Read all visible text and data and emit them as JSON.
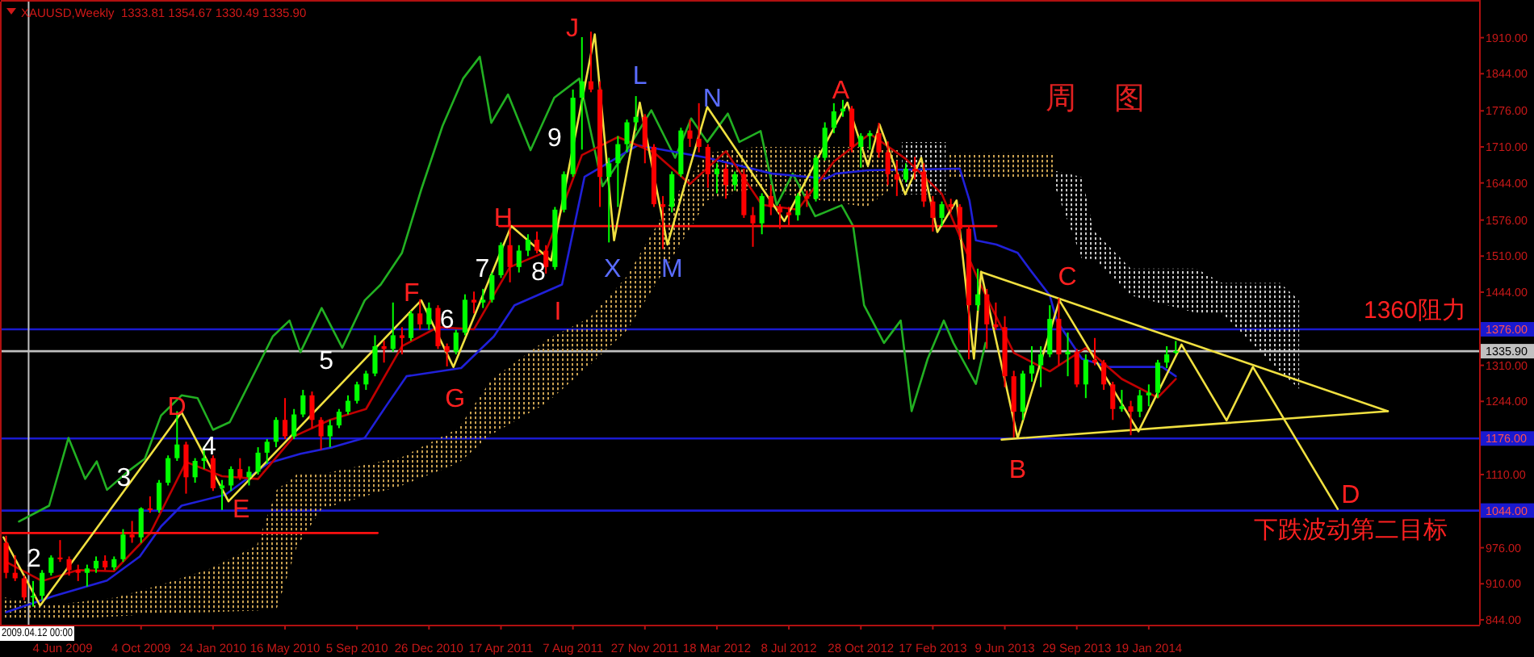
{
  "chart_data": {
    "type": "candlestick",
    "title": "XAUUSD,Weekly  1333.81 1354.67 1330.49 1335.90",
    "subtitle": "周 图",
    "xlim": [
      "2009-03-01",
      "2015-06-17"
    ],
    "ylim": [
      835,
      1976
    ],
    "xticks": [
      {
        "value": "2009-06-04",
        "label": "4 Jun 2009"
      },
      {
        "value": "2009-10-04",
        "label": "4 Oct 2009"
      },
      {
        "value": "2010-01-24",
        "label": "24 Jan 2010"
      },
      {
        "value": "2010-05-16",
        "label": "16 May 2010"
      },
      {
        "value": "2010-09-05",
        "label": "5 Sep 2010"
      },
      {
        "value": "2010-12-26",
        "label": "26 Dec 2010"
      },
      {
        "value": "2011-04-17",
        "label": "17 Apr 2011"
      },
      {
        "value": "2011-08-07",
        "label": "7 Aug 2011"
      },
      {
        "value": "2011-11-27",
        "label": "27 Nov 2011"
      },
      {
        "value": "2012-03-18",
        "label": "18 Mar 2012"
      },
      {
        "value": "2012-07-08",
        "label": "8 Jul 2012"
      },
      {
        "value": "2012-10-28",
        "label": "28 Oct 2012"
      },
      {
        "value": "2013-02-17",
        "label": "17 Feb 2013"
      },
      {
        "value": "2013-06-09",
        "label": "9 Jun 2013"
      },
      {
        "value": "2013-09-29",
        "label": "29 Sep 2013"
      },
      {
        "value": "2014-01-19",
        "label": "19 Jan 2014"
      }
    ],
    "yticks": [
      {
        "value": 1910,
        "label": "1910.00"
      },
      {
        "value": 1844,
        "label": "1844.00"
      },
      {
        "value": 1776,
        "label": "1776.00"
      },
      {
        "value": 1710,
        "label": "1710.00"
      },
      {
        "value": 1644,
        "label": "1644.00"
      },
      {
        "value": 1576,
        "label": "1576.00"
      },
      {
        "value": 1510,
        "label": "1510.00"
      },
      {
        "value": 1444,
        "label": "1444.00"
      },
      {
        "value": 1310,
        "label": "1310.00"
      },
      {
        "value": 1244,
        "label": "1244.00"
      },
      {
        "value": 1110,
        "label": "1110.00"
      },
      {
        "value": 976,
        "label": "976.00"
      },
      {
        "value": 910,
        "label": "910.00"
      },
      {
        "value": 844,
        "label": "844.00"
      }
    ],
    "x": [
      "2009-03-08",
      "2009-03-22",
      "2009-04-05",
      "2009-04-19",
      "2009-05-03",
      "2009-05-17",
      "2009-05-31",
      "2009-06-14",
      "2009-06-28",
      "2009-07-12",
      "2009-07-26",
      "2009-08-09",
      "2009-08-23",
      "2009-09-06",
      "2009-09-20",
      "2009-10-04",
      "2009-10-18",
      "2009-11-01",
      "2009-11-15",
      "2009-11-29",
      "2009-12-13",
      "2009-12-27",
      "2010-01-10",
      "2010-01-24",
      "2010-02-07",
      "2010-02-21",
      "2010-03-07",
      "2010-03-21",
      "2010-04-04",
      "2010-04-18",
      "2010-05-02",
      "2010-05-16",
      "2010-05-30",
      "2010-06-13",
      "2010-06-27",
      "2010-07-11",
      "2010-07-25",
      "2010-08-08",
      "2010-08-22",
      "2010-09-05",
      "2010-09-19",
      "2010-10-03",
      "2010-10-17",
      "2010-10-31",
      "2010-11-14",
      "2010-11-28",
      "2010-12-12",
      "2010-12-26",
      "2011-01-09",
      "2011-01-23",
      "2011-02-06",
      "2011-02-20",
      "2011-03-06",
      "2011-03-20",
      "2011-04-03",
      "2011-04-17",
      "2011-05-01",
      "2011-05-15",
      "2011-05-29",
      "2011-06-12",
      "2011-06-26",
      "2011-07-10",
      "2011-07-24",
      "2011-08-07",
      "2011-08-21",
      "2011-09-04",
      "2011-09-18",
      "2011-10-02",
      "2011-10-16",
      "2011-10-30",
      "2011-11-13",
      "2011-11-27",
      "2011-12-11",
      "2011-12-25",
      "2012-01-08",
      "2012-01-22",
      "2012-02-05",
      "2012-02-19",
      "2012-03-04",
      "2012-03-18",
      "2012-04-01",
      "2012-04-15",
      "2012-04-29",
      "2012-05-13",
      "2012-05-27",
      "2012-06-10",
      "2012-06-24",
      "2012-07-08",
      "2012-07-22",
      "2012-08-05",
      "2012-08-19",
      "2012-09-02",
      "2012-09-16",
      "2012-09-30",
      "2012-10-14",
      "2012-10-28",
      "2012-11-11",
      "2012-11-25",
      "2012-12-09",
      "2012-12-23",
      "2013-01-06",
      "2013-01-20",
      "2013-02-03",
      "2013-02-17",
      "2013-03-03",
      "2013-03-17",
      "2013-03-31",
      "2013-04-14",
      "2013-04-28",
      "2013-05-12",
      "2013-05-26",
      "2013-06-09",
      "2013-06-23",
      "2013-07-07",
      "2013-07-21",
      "2013-08-04",
      "2013-08-18",
      "2013-09-01",
      "2013-09-15",
      "2013-09-29",
      "2013-10-13",
      "2013-10-27",
      "2013-11-10",
      "2013-11-24",
      "2013-12-08",
      "2013-12-22",
      "2014-01-05",
      "2014-01-19",
      "2014-02-02",
      "2014-02-16",
      "2014-03-02"
    ],
    "ohlc": [
      [
        985,
        998,
        920,
        930
      ],
      [
        930,
        962,
        915,
        920
      ],
      [
        920,
        925,
        880,
        885
      ],
      [
        885,
        915,
        868,
        888
      ],
      [
        888,
        935,
        880,
        930
      ],
      [
        930,
        962,
        925,
        958
      ],
      [
        958,
        990,
        950,
        955
      ],
      [
        955,
        960,
        925,
        935
      ],
      [
        935,
        945,
        915,
        930
      ],
      [
        930,
        945,
        905,
        938
      ],
      [
        938,
        960,
        930,
        952
      ],
      [
        952,
        962,
        935,
        940
      ],
      [
        940,
        960,
        935,
        955
      ],
      [
        955,
        1010,
        950,
        1000
      ],
      [
        1000,
        1025,
        985,
        995
      ],
      [
        995,
        1050,
        985,
        1048
      ],
      [
        1048,
        1070,
        1040,
        1045
      ],
      [
        1045,
        1100,
        1040,
        1095
      ],
      [
        1095,
        1145,
        1090,
        1140
      ],
      [
        1140,
        1226,
        1135,
        1165
      ],
      [
        1165,
        1170,
        1075,
        1105
      ],
      [
        1105,
        1140,
        1095,
        1135
      ],
      [
        1135,
        1162,
        1120,
        1140
      ],
      [
        1140,
        1145,
        1080,
        1085
      ],
      [
        1085,
        1100,
        1045,
        1090
      ],
      [
        1090,
        1125,
        1080,
        1120
      ],
      [
        1120,
        1140,
        1100,
        1105
      ],
      [
        1105,
        1125,
        1090,
        1115
      ],
      [
        1115,
        1160,
        1110,
        1150
      ],
      [
        1150,
        1175,
        1130,
        1170
      ],
      [
        1170,
        1215,
        1160,
        1210
      ],
      [
        1210,
        1250,
        1175,
        1180
      ],
      [
        1180,
        1230,
        1175,
        1220
      ],
      [
        1220,
        1265,
        1215,
        1255
      ],
      [
        1255,
        1262,
        1195,
        1210
      ],
      [
        1210,
        1215,
        1155,
        1180
      ],
      [
        1180,
        1210,
        1160,
        1200
      ],
      [
        1200,
        1230,
        1195,
        1225
      ],
      [
        1225,
        1255,
        1220,
        1245
      ],
      [
        1245,
        1280,
        1240,
        1275
      ],
      [
        1275,
        1300,
        1265,
        1295
      ],
      [
        1295,
        1365,
        1290,
        1345
      ],
      [
        1345,
        1355,
        1315,
        1340
      ],
      [
        1340,
        1425,
        1335,
        1365
      ],
      [
        1365,
        1380,
        1330,
        1360
      ],
      [
        1360,
        1410,
        1355,
        1405
      ],
      [
        1405,
        1431,
        1375,
        1385
      ],
      [
        1385,
        1425,
        1375,
        1415
      ],
      [
        1415,
        1420,
        1340,
        1345
      ],
      [
        1345,
        1350,
        1308,
        1335
      ],
      [
        1335,
        1375,
        1330,
        1370
      ],
      [
        1370,
        1440,
        1365,
        1430
      ],
      [
        1430,
        1445,
        1405,
        1425
      ],
      [
        1425,
        1450,
        1415,
        1430
      ],
      [
        1430,
        1480,
        1425,
        1475
      ],
      [
        1475,
        1535,
        1470,
        1530
      ],
      [
        1530,
        1575,
        1462,
        1490
      ],
      [
        1490,
        1530,
        1480,
        1520
      ],
      [
        1520,
        1550,
        1510,
        1540
      ],
      [
        1540,
        1555,
        1515,
        1520
      ],
      [
        1520,
        1530,
        1478,
        1490
      ],
      [
        1490,
        1600,
        1485,
        1595
      ],
      [
        1595,
        1665,
        1590,
        1660
      ],
      [
        1660,
        1815,
        1655,
        1800
      ],
      [
        1800,
        1911,
        1705,
        1830
      ],
      [
        1830,
        1921,
        1810,
        1815
      ],
      [
        1815,
        1830,
        1600,
        1655
      ],
      [
        1655,
        1690,
        1535,
        1680
      ],
      [
        1680,
        1730,
        1600,
        1715
      ],
      [
        1715,
        1760,
        1700,
        1755
      ],
      [
        1755,
        1803,
        1740,
        1765
      ],
      [
        1765,
        1770,
        1680,
        1710
      ],
      [
        1710,
        1715,
        1600,
        1605
      ],
      [
        1605,
        1620,
        1523,
        1600
      ],
      [
        1600,
        1665,
        1590,
        1660
      ],
      [
        1660,
        1745,
        1655,
        1740
      ],
      [
        1740,
        1760,
        1710,
        1725
      ],
      [
        1725,
        1790,
        1700,
        1710
      ],
      [
        1710,
        1715,
        1635,
        1660
      ],
      [
        1660,
        1680,
        1625,
        1670
      ],
      [
        1670,
        1680,
        1615,
        1640
      ],
      [
        1640,
        1665,
        1630,
        1660
      ],
      [
        1660,
        1670,
        1580,
        1585
      ],
      [
        1585,
        1600,
        1527,
        1570
      ],
      [
        1570,
        1625,
        1550,
        1620
      ],
      [
        1620,
        1640,
        1585,
        1600
      ],
      [
        1600,
        1605,
        1560,
        1590
      ],
      [
        1590,
        1600,
        1565,
        1585
      ],
      [
        1585,
        1625,
        1575,
        1620
      ],
      [
        1620,
        1630,
        1600,
        1615
      ],
      [
        1615,
        1695,
        1610,
        1690
      ],
      [
        1690,
        1755,
        1685,
        1745
      ],
      [
        1745,
        1790,
        1735,
        1775
      ],
      [
        1775,
        1796,
        1765,
        1780
      ],
      [
        1780,
        1785,
        1700,
        1710
      ],
      [
        1710,
        1735,
        1672,
        1730
      ],
      [
        1730,
        1740,
        1705,
        1735
      ],
      [
        1735,
        1754,
        1690,
        1700
      ],
      [
        1700,
        1720,
        1640,
        1660
      ],
      [
        1660,
        1685,
        1620,
        1650
      ],
      [
        1650,
        1680,
        1645,
        1670
      ],
      [
        1670,
        1692,
        1650,
        1665
      ],
      [
        1665,
        1680,
        1600,
        1610
      ],
      [
        1610,
        1620,
        1555,
        1580
      ],
      [
        1580,
        1610,
        1565,
        1605
      ],
      [
        1605,
        1615,
        1590,
        1600
      ],
      [
        1600,
        1605,
        1540,
        1560
      ],
      [
        1560,
        1565,
        1321,
        1420
      ],
      [
        1420,
        1487,
        1410,
        1440
      ],
      [
        1440,
        1450,
        1340,
        1385
      ],
      [
        1385,
        1425,
        1375,
        1380
      ],
      [
        1380,
        1400,
        1270,
        1290
      ],
      [
        1290,
        1300,
        1178,
        1225
      ],
      [
        1225,
        1300,
        1210,
        1295
      ],
      [
        1295,
        1345,
        1280,
        1310
      ],
      [
        1310,
        1345,
        1270,
        1330
      ],
      [
        1330,
        1420,
        1325,
        1395
      ],
      [
        1395,
        1433,
        1310,
        1330
      ],
      [
        1330,
        1370,
        1290,
        1335
      ],
      [
        1335,
        1340,
        1270,
        1275
      ],
      [
        1275,
        1330,
        1250,
        1320
      ],
      [
        1320,
        1360,
        1310,
        1315
      ],
      [
        1315,
        1320,
        1265,
        1275
      ],
      [
        1275,
        1280,
        1210,
        1230
      ],
      [
        1230,
        1265,
        1225,
        1235
      ],
      [
        1235,
        1245,
        1182,
        1225
      ],
      [
        1225,
        1265,
        1215,
        1255
      ],
      [
        1255,
        1275,
        1235,
        1260
      ],
      [
        1260,
        1320,
        1250,
        1315
      ],
      [
        1315,
        1345,
        1305,
        1330
      ],
      [
        1333.81,
        1354.67,
        1330.49,
        1335.9
      ]
    ],
    "colors": [
      "#ff0000",
      "#ff0000",
      "#ff0000",
      "#00ff00",
      "#00ff00",
      "#00ff00",
      "#ff0000",
      "#ff0000",
      "#ff0000",
      "#00ff00",
      "#00ff00",
      "#ff0000",
      "#00ff00",
      "#00ff00",
      "#ff0000",
      "#00ff00",
      "#ff0000",
      "#00ff00",
      "#00ff00",
      "#00ff00",
      "#ff0000",
      "#00ff00",
      "#00ff00",
      "#ff0000",
      "#00ff00",
      "#00ff00",
      "#ff0000",
      "#00ff00",
      "#00ff00",
      "#00ff00",
      "#00ff00",
      "#ff0000",
      "#00ff00",
      "#00ff00",
      "#ff0000",
      "#ff0000",
      "#00ff00",
      "#00ff00",
      "#00ff00",
      "#00ff00",
      "#00ff00",
      "#00ff00",
      "#ff0000",
      "#00ff00",
      "#ff0000",
      "#00ff00",
      "#ff0000",
      "#00ff00",
      "#ff0000",
      "#ff0000",
      "#00ff00",
      "#00ff00",
      "#ff0000",
      "#00ff00",
      "#00ff00",
      "#00ff00",
      "#ff0000",
      "#00ff00",
      "#00ff00",
      "#ff0000",
      "#ff0000",
      "#00ff00",
      "#00ff00",
      "#00ff00",
      "#00ff00",
      "#ff0000",
      "#ff0000",
      "#00ff00",
      "#00ff00",
      "#00ff00",
      "#00ff00",
      "#ff0000",
      "#ff0000",
      "#ff0000",
      "#00ff00",
      "#00ff00",
      "#ff0000",
      "#ff0000",
      "#ff0000",
      "#00ff00",
      "#ff0000",
      "#00ff00",
      "#ff0000",
      "#ff0000",
      "#00ff00",
      "#ff0000",
      "#ff0000",
      "#ff0000",
      "#00ff00",
      "#ff0000",
      "#00ff00",
      "#00ff00",
      "#00ff00",
      "#00ff00",
      "#ff0000",
      "#00ff00",
      "#00ff00",
      "#ff0000",
      "#ff0000",
      "#ff0000",
      "#00ff00",
      "#ff0000",
      "#ff0000",
      "#ff0000",
      "#00ff00",
      "#ff0000",
      "#ff0000",
      "#ff0000",
      "#00ff00",
      "#ff0000",
      "#ff0000",
      "#ff0000",
      "#ff0000",
      "#00ff00",
      "#00ff00",
      "#00ff00",
      "#00ff00",
      "#ff0000",
      "#00ff00",
      "#ff0000",
      "#00ff00",
      "#ff0000",
      "#ff0000",
      "#ff0000",
      "#00ff00",
      "#ff0000",
      "#00ff00",
      "#00ff00",
      "#00ff00",
      "#00ff00",
      "#00ff00"
    ],
    "series": [
      {
        "type": "line",
        "color": "#c8a050",
        "x": [
          "2009-03-06",
          "2009-05-14",
          "2009-08-26",
          "2009-11-04",
          "2010-01-18",
          "2010-04-02",
          "2010-05-03",
          "2010-06-04",
          "2010-07-12",
          "2010-11-14",
          "2011-02-10",
          "2011-04-02",
          "2011-06-27",
          "2011-09-02",
          "2011-10-30",
          "2012-01-01",
          "2012-03-03",
          "2012-05-17",
          "2012-08-01",
          "2012-11-06",
          "2012-12-29"
        ],
        "values": [
          null,
          null,
          null,
          null,
          null,
          null,
          null,
          null,
          null,
          null,
          null,
          null,
          null,
          null,
          null,
          null,
          null,
          null,
          null,
          null,
          null
        ],
        "upper": [
          885,
          870,
          885,
          908,
          937,
          980,
          1082,
          1111,
          1111,
          1142,
          1195,
          1284,
          1357,
          1397,
          1473,
          1600,
          1699,
          1710,
          1710,
          1710,
          1704
        ],
        "lower": [
          844,
          844,
          850,
          856,
          858,
          861,
          864,
          980,
          1047,
          1090,
          1131,
          1183,
          1241,
          1310,
          1374,
          1493,
          1612,
          1635,
          1617,
          1600,
          1646
        ]
      },
      {
        "type": "line",
        "color": "#c8c8c8",
        "x": [
          "2012-12-31",
          "2013-03-09"
        ],
        "values": [
          null,
          null
        ],
        "upper": [
          1719,
          1719
        ],
        "lower": [
          1623,
          1623
        ]
      },
      {
        "type": "line",
        "color": "#c8a050",
        "x": [
          "2013-03-14",
          "2013-08-23"
        ],
        "values": [
          null,
          null
        ],
        "upper": [
          1699,
          1699
        ],
        "lower": [
          1655,
          1655
        ]
      },
      {
        "type": "line",
        "color": "#c8c8c8",
        "x": [
          "2013-08-23",
          "2013-10-07",
          "2013-10-25",
          "2013-12-22",
          "2014-04-03",
          "2014-05-13",
          "2014-08-11",
          "2014-09-10"
        ],
        "values": [
          null,
          null,
          null,
          null,
          null,
          null,
          null,
          null
        ],
        "upper": [
          1667,
          1655,
          1557,
          1487,
          1487,
          1461,
          1461,
          1429
        ],
        "lower": [
          1646,
          1505,
          1505,
          1438,
          1406,
          1406,
          1299,
          1267
        ]
      },
      {
        "type": "line",
        "color": "#22b022",
        "x": [
          "2009-03-28",
          "2009-05-14",
          "2009-06-13",
          "2009-07-09",
          "2009-07-27",
          "2009-08-12",
          "2009-09-14",
          "2009-10-10",
          "2009-11-04",
          "2009-12-06",
          "2009-12-31",
          "2010-01-24",
          "2010-02-19",
          "2010-04-27",
          "2010-05-23",
          "2010-06-09",
          "2010-07-12",
          "2010-08-13",
          "2010-09-17",
          "2010-10-12",
          "2010-11-14",
          "2010-12-14",
          "2011-01-16",
          "2011-02-17",
          "2011-03-15",
          "2011-04-02",
          "2011-04-28",
          "2011-06-02",
          "2011-07-09",
          "2011-08-17",
          "2011-09-22",
          "2011-10-30",
          "2011-12-07",
          "2012-01-13",
          "2012-02-07",
          "2012-03-03",
          "2012-04-04",
          "2012-04-22",
          "2012-05-25",
          "2012-06-19",
          "2012-07-14",
          "2012-08-18",
          "2012-09-28",
          "2012-10-16",
          "2012-11-02",
          "2012-12-03",
          "2012-12-29",
          "2013-01-15",
          "2013-02-09",
          "2013-03-06",
          "2013-03-21",
          "2013-04-25",
          "2013-05-10"
        ],
        "values": [
          1024,
          1053,
          1177,
          1102,
          1134,
          1082,
          1116,
          1139,
          1218,
          1255,
          1250,
          1192,
          1206,
          1363,
          1392,
          1334,
          1415,
          1342,
          1429,
          1458,
          1516,
          1632,
          1748,
          1835,
          1875,
          1754,
          1806,
          1704,
          1800,
          1835,
          1638,
          1704,
          1777,
          1690,
          1762,
          1719,
          1771,
          1719,
          1739,
          1603,
          1661,
          1583,
          1603,
          1565,
          1420,
          1351,
          1392,
          1226,
          1322,
          1392,
          1351,
          1276,
          1351
        ]
      },
      {
        "type": "line",
        "color": "#2020d8",
        "x": [
          "2009-03-08",
          "2009-05-20",
          "2009-08-12",
          "2009-10-02",
          "2009-11-04",
          "2009-12-06",
          "2010-02-12",
          "2010-04-20",
          "2010-06-09",
          "2010-07-29",
          "2010-09-17",
          "2010-10-20",
          "2010-11-21",
          "2011-02-14",
          "2011-04-06",
          "2011-05-08",
          "2011-07-21",
          "2011-08-25",
          "2011-11-16",
          "2012-03-03",
          "2012-06-12",
          "2012-09-04",
          "2012-09-19",
          "2012-11-08",
          "2013-03-31",
          "2013-04-15",
          "2013-04-25",
          "2013-05-27",
          "2013-06-29",
          "2013-07-17",
          "2013-08-18",
          "2013-08-29",
          "2013-10-07",
          "2013-11-18",
          "2014-02-09",
          "2014-03-02"
        ],
        "values": [
          858,
          887,
          916,
          960,
          1015,
          1053,
          1073,
          1131,
          1148,
          1160,
          1177,
          1235,
          1290,
          1305,
          1363,
          1420,
          1458,
          1655,
          1713,
          1690,
          1661,
          1652,
          1661,
          1667,
          1670,
          1612,
          1539,
          1531,
          1516,
          1487,
          1438,
          1391,
          1322,
          1307,
          1307,
          1290
        ]
      },
      {
        "type": "line",
        "color": "#c00000",
        "x": [
          "2009-03-08",
          "2009-05-03",
          "2009-06-28",
          "2009-08-23",
          "2009-10-18",
          "2009-12-13",
          "2010-02-07",
          "2010-04-04",
          "2010-05-30",
          "2010-07-25",
          "2010-09-19",
          "2010-11-14",
          "2011-01-09",
          "2011-03-06",
          "2011-05-01",
          "2011-06-26",
          "2011-08-21",
          "2011-10-16",
          "2011-12-11",
          "2012-02-05",
          "2012-04-01",
          "2012-05-27",
          "2012-07-22",
          "2012-09-16",
          "2012-11-11",
          "2013-01-06",
          "2013-03-03",
          "2013-04-28",
          "2013-06-23",
          "2013-08-18",
          "2013-10-13",
          "2013-12-08",
          "2014-02-02",
          "2014-03-02"
        ],
        "values": [
          950,
          915,
          935,
          933,
          1002,
          1133,
          1107,
          1102,
          1180,
          1210,
          1230,
          1345,
          1380,
          1376,
          1490,
          1518,
          1695,
          1728,
          1700,
          1642,
          1702,
          1604,
          1595,
          1683,
          1734,
          1688,
          1624,
          1468,
          1333,
          1299,
          1342,
          1285,
          1251,
          1285
        ]
      },
      {
        "type": "line",
        "color": "#ff1010",
        "x": [
          "2009-03-01",
          "2010-10-07"
        ],
        "values": [
          1003,
          1003
        ]
      },
      {
        "type": "line",
        "color": "#ff1010",
        "x": [
          "2011-04-14",
          "2013-05-27"
        ],
        "values": [
          1565,
          1565
        ]
      },
      {
        "type": "line",
        "color": "#f0e040",
        "x": [
          "2013-05-03",
          "2015-01-26"
        ],
        "values": [
          1481,
          1226
        ]
      },
      {
        "type": "line",
        "color": "#f0e040",
        "x": [
          "2013-06-04",
          "2015-01-26"
        ],
        "values": [
          1174,
          1226
        ]
      },
      {
        "type": "line",
        "color": "#f0e040",
        "x": [
          "2009-03-04",
          "2009-04-30",
          "2009-12-06",
          "2010-02-17",
          "2010-12-14",
          "2011-02-02",
          "2011-05-03",
          "2011-07-04",
          "2011-09-10",
          "2011-10-10",
          "2011-11-19",
          "2012-01-01",
          "2012-03-03",
          "2012-07-01",
          "2012-10-07",
          "2012-11-08",
          "2012-11-26",
          "2013-01-05",
          "2013-01-30",
          "2013-02-24",
          "2013-03-26",
          "2013-04-22",
          "2013-05-03",
          "2013-06-29",
          "2013-09-02",
          "2014-01-03",
          "2014-03-11",
          "2014-05-20",
          "2014-06-30",
          "2014-11-09"
        ],
        "values": [
          995,
          870,
          1224,
          1061,
          1429,
          1307,
          1565,
          1502,
          1916,
          1539,
          1791,
          1531,
          1783,
          1574,
          1791,
          1675,
          1751,
          1623,
          1690,
          1554,
          1612,
          1322,
          1481,
          1177,
          1429,
          1189,
          1348,
          1209,
          1307,
          1047
        ]
      }
    ],
    "ref_lines": [
      {
        "axis": "y",
        "value": 1376,
        "label": "1376.00",
        "color": "#1a1ad0"
      },
      {
        "axis": "y",
        "value": 1176,
        "label": "1176.00",
        "color": "#1a1ad0"
      },
      {
        "axis": "y",
        "value": 1044,
        "label": "1044.00",
        "color": "#1a1ad0"
      },
      {
        "axis": "y",
        "value": 1335.9,
        "label": "1335.90",
        "color": "#c0c0c0"
      },
      {
        "axis": "x",
        "value": "2009-04-12",
        "label": "2009.04.12 00:00",
        "color": "#c0c0c0"
      }
    ],
    "annotations": [
      "J",
      "L",
      "N",
      "A",
      "C",
      "B",
      "D",
      "E",
      "F",
      "G",
      "H",
      "I",
      "X",
      "M",
      "D",
      "2",
      "3",
      "4",
      "5",
      "6",
      "7",
      "8",
      "9",
      "1360阻力",
      "下跌波动第二目标"
    ]
  }
}
